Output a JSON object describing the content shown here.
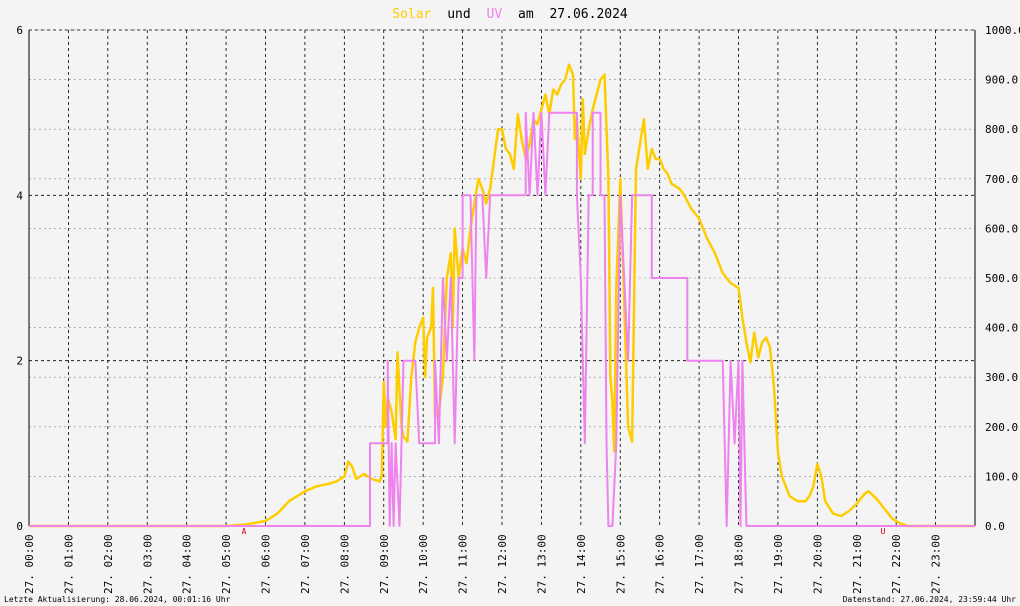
{
  "title": {
    "solar_label": "Solar",
    "und": "und",
    "uv_label": "UV",
    "am": "am",
    "date": "27.06.2024",
    "solar_color": "#ffcc00",
    "uv_color": "#ee82ee"
  },
  "footer": {
    "left": "Letzte Aktualisierung: 28.06.2024, 00:01:16 Uhr",
    "right": "Datenstand: 27.06.2024, 23:59:44 Uhr"
  },
  "markers": {
    "sunrise": "A",
    "sunset": "U",
    "color": "#cc0000"
  },
  "chart_data": {
    "type": "line",
    "x_hours": [
      0,
      24
    ],
    "x_tick_labels": [
      "27. 00:00",
      "27. 01:00",
      "27. 02:00",
      "27. 03:00",
      "27. 04:00",
      "27. 05:00",
      "27. 06:00",
      "27. 07:00",
      "27. 08:00",
      "27. 09:00",
      "27. 10:00",
      "27. 11:00",
      "27. 12:00",
      "27. 13:00",
      "27. 14:00",
      "27. 15:00",
      "27. 16:00",
      "27. 17:00",
      "27. 18:00",
      "27. 19:00",
      "27. 20:00",
      "27. 21:00",
      "27. 22:00",
      "27. 23:00"
    ],
    "y_left": {
      "range": [
        0,
        6
      ],
      "ticks": [
        0,
        2,
        4,
        6
      ],
      "tick_labels": [
        "0",
        "2",
        "4",
        "6"
      ]
    },
    "y_right": {
      "range": [
        0,
        1000
      ],
      "ticks": [
        0,
        100,
        200,
        300,
        400,
        500,
        600,
        700,
        800,
        900,
        1000
      ],
      "tick_labels": [
        "0.0",
        "100.0",
        "200.0",
        "300.0",
        "400.0",
        "500.0",
        "600.0",
        "700.0",
        "800.0",
        "900.0",
        "1000.0"
      ]
    },
    "grid": true,
    "series": [
      {
        "name": "Solar",
        "axis": "right",
        "color": "#ffcc00",
        "points": [
          [
            0,
            0
          ],
          [
            5.0,
            0
          ],
          [
            5.5,
            3
          ],
          [
            6.0,
            10
          ],
          [
            6.3,
            25
          ],
          [
            6.6,
            50
          ],
          [
            7.0,
            70
          ],
          [
            7.3,
            80
          ],
          [
            7.6,
            85
          ],
          [
            7.8,
            90
          ],
          [
            8.0,
            100
          ],
          [
            8.1,
            130
          ],
          [
            8.2,
            120
          ],
          [
            8.3,
            95
          ],
          [
            8.5,
            105
          ],
          [
            8.7,
            95
          ],
          [
            8.9,
            90
          ],
          [
            8.95,
            100
          ],
          [
            9.0,
            290
          ],
          [
            9.05,
            200
          ],
          [
            9.1,
            260
          ],
          [
            9.2,
            230
          ],
          [
            9.3,
            175
          ],
          [
            9.35,
            350
          ],
          [
            9.45,
            200
          ],
          [
            9.5,
            180
          ],
          [
            9.6,
            170
          ],
          [
            9.7,
            300
          ],
          [
            9.8,
            370
          ],
          [
            9.9,
            400
          ],
          [
            10.0,
            420
          ],
          [
            10.05,
            300
          ],
          [
            10.1,
            380
          ],
          [
            10.2,
            400
          ],
          [
            10.25,
            480
          ],
          [
            10.3,
            220
          ],
          [
            10.4,
            230
          ],
          [
            10.5,
            300
          ],
          [
            10.6,
            500
          ],
          [
            10.7,
            550
          ],
          [
            10.75,
            400
          ],
          [
            10.8,
            600
          ],
          [
            10.9,
            500
          ],
          [
            11.0,
            560
          ],
          [
            11.1,
            530
          ],
          [
            11.2,
            600
          ],
          [
            11.3,
            650
          ],
          [
            11.4,
            700
          ],
          [
            11.5,
            680
          ],
          [
            11.6,
            650
          ],
          [
            11.7,
            680
          ],
          [
            11.8,
            740
          ],
          [
            11.9,
            800
          ],
          [
            12.0,
            800
          ],
          [
            12.1,
            760
          ],
          [
            12.2,
            750
          ],
          [
            12.3,
            720
          ],
          [
            12.4,
            830
          ],
          [
            12.5,
            780
          ],
          [
            12.6,
            740
          ],
          [
            12.7,
            770
          ],
          [
            12.8,
            820
          ],
          [
            12.9,
            810
          ],
          [
            13.0,
            840
          ],
          [
            13.1,
            870
          ],
          [
            13.2,
            830
          ],
          [
            13.3,
            880
          ],
          [
            13.4,
            870
          ],
          [
            13.5,
            890
          ],
          [
            13.6,
            900
          ],
          [
            13.7,
            930
          ],
          [
            13.8,
            910
          ],
          [
            13.85,
            780
          ],
          [
            13.9,
            820
          ],
          [
            14.0,
            700
          ],
          [
            14.05,
            860
          ],
          [
            14.1,
            750
          ],
          [
            14.2,
            800
          ],
          [
            14.3,
            840
          ],
          [
            14.4,
            870
          ],
          [
            14.5,
            900
          ],
          [
            14.6,
            910
          ],
          [
            14.7,
            700
          ],
          [
            14.75,
            300
          ],
          [
            14.8,
            250
          ],
          [
            14.85,
            150
          ],
          [
            14.9,
            480
          ],
          [
            15.0,
            700
          ],
          [
            15.1,
            450
          ],
          [
            15.2,
            200
          ],
          [
            15.3,
            170
          ],
          [
            15.4,
            720
          ],
          [
            15.5,
            770
          ],
          [
            15.6,
            820
          ],
          [
            15.7,
            720
          ],
          [
            15.8,
            760
          ],
          [
            15.9,
            740
          ],
          [
            16.0,
            740
          ],
          [
            16.1,
            720
          ],
          [
            16.2,
            710
          ],
          [
            16.3,
            690
          ],
          [
            16.5,
            680
          ],
          [
            16.6,
            670
          ],
          [
            16.8,
            640
          ],
          [
            17.0,
            620
          ],
          [
            17.2,
            580
          ],
          [
            17.4,
            550
          ],
          [
            17.6,
            510
          ],
          [
            17.8,
            490
          ],
          [
            18.0,
            480
          ],
          [
            18.1,
            420
          ],
          [
            18.2,
            370
          ],
          [
            18.3,
            330
          ],
          [
            18.4,
            390
          ],
          [
            18.5,
            340
          ],
          [
            18.6,
            370
          ],
          [
            18.7,
            380
          ],
          [
            18.8,
            360
          ],
          [
            18.9,
            280
          ],
          [
            19.0,
            150
          ],
          [
            19.1,
            100
          ],
          [
            19.3,
            60
          ],
          [
            19.5,
            50
          ],
          [
            19.7,
            50
          ],
          [
            19.8,
            60
          ],
          [
            19.9,
            80
          ],
          [
            20.0,
            125
          ],
          [
            20.1,
            100
          ],
          [
            20.2,
            50
          ],
          [
            20.4,
            25
          ],
          [
            20.6,
            20
          ],
          [
            20.8,
            30
          ],
          [
            21.0,
            45
          ],
          [
            21.2,
            65
          ],
          [
            21.3,
            70
          ],
          [
            21.5,
            55
          ],
          [
            21.7,
            35
          ],
          [
            21.9,
            15
          ],
          [
            22.1,
            5
          ],
          [
            22.3,
            0
          ],
          [
            24,
            0
          ]
        ]
      },
      {
        "name": "UV",
        "axis": "left",
        "color": "#ee82ee",
        "points": [
          [
            0,
            0
          ],
          [
            8.65,
            0
          ],
          [
            8.65,
            1
          ],
          [
            9.1,
            1
          ],
          [
            9.1,
            2
          ],
          [
            9.15,
            0
          ],
          [
            9.2,
            1
          ],
          [
            9.25,
            0
          ],
          [
            9.3,
            1
          ],
          [
            9.4,
            0
          ],
          [
            9.45,
            1
          ],
          [
            9.5,
            2
          ],
          [
            9.8,
            2
          ],
          [
            9.9,
            1
          ],
          [
            10.3,
            1
          ],
          [
            10.3,
            2
          ],
          [
            10.4,
            1
          ],
          [
            10.5,
            3
          ],
          [
            10.6,
            2
          ],
          [
            10.7,
            3
          ],
          [
            10.8,
            1
          ],
          [
            10.9,
            3
          ],
          [
            11.0,
            3
          ],
          [
            11.0,
            4
          ],
          [
            11.2,
            4
          ],
          [
            11.25,
            3
          ],
          [
            11.3,
            2
          ],
          [
            11.35,
            4
          ],
          [
            11.5,
            4
          ],
          [
            11.6,
            3
          ],
          [
            11.7,
            4
          ],
          [
            12.6,
            4
          ],
          [
            12.6,
            5
          ],
          [
            12.7,
            4
          ],
          [
            12.8,
            5
          ],
          [
            12.9,
            4
          ],
          [
            13.0,
            5
          ],
          [
            13.1,
            4
          ],
          [
            13.2,
            5
          ],
          [
            13.3,
            5
          ],
          [
            13.5,
            5
          ],
          [
            13.5,
            5
          ],
          [
            13.9,
            5
          ],
          [
            13.9,
            4
          ],
          [
            14.0,
            3
          ],
          [
            14.1,
            1
          ],
          [
            14.2,
            4
          ],
          [
            14.3,
            4
          ],
          [
            14.3,
            5
          ],
          [
            14.5,
            5
          ],
          [
            14.5,
            4
          ],
          [
            14.6,
            4
          ],
          [
            14.65,
            1
          ],
          [
            14.7,
            0
          ],
          [
            14.8,
            0
          ],
          [
            14.9,
            1
          ],
          [
            15.0,
            4
          ],
          [
            15.1,
            3
          ],
          [
            15.2,
            2
          ],
          [
            15.3,
            4
          ],
          [
            15.4,
            4
          ],
          [
            15.5,
            4
          ],
          [
            15.8,
            4
          ],
          [
            15.8,
            3
          ],
          [
            16.7,
            3
          ],
          [
            16.7,
            2
          ],
          [
            17.6,
            2
          ],
          [
            17.7,
            0
          ],
          [
            17.8,
            2
          ],
          [
            17.9,
            1
          ],
          [
            18.0,
            2
          ],
          [
            18.05,
            0
          ],
          [
            18.1,
            2
          ],
          [
            18.2,
            0
          ],
          [
            24,
            0
          ]
        ]
      }
    ]
  }
}
